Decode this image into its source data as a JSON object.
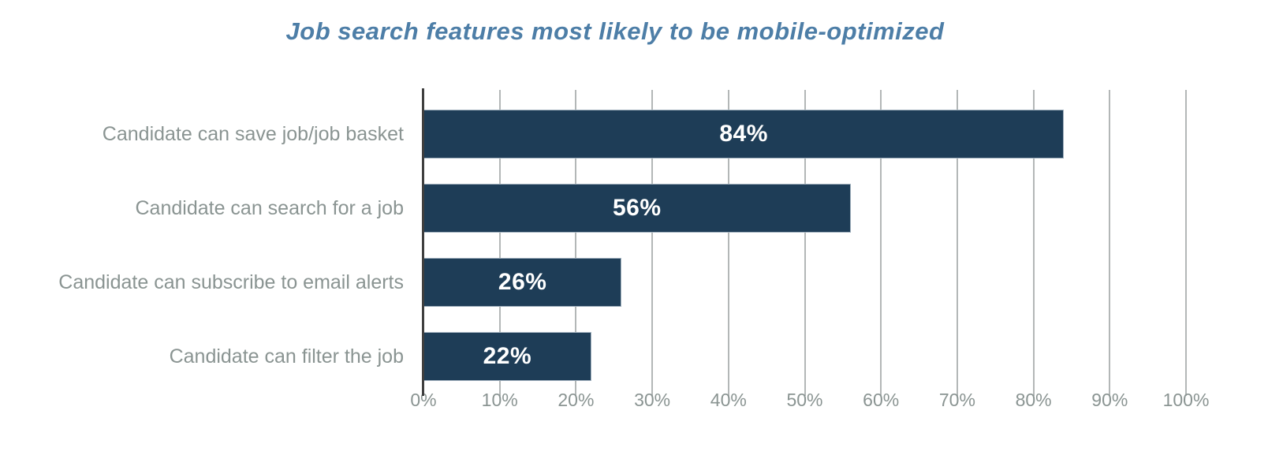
{
  "title": "Job search features most likely to be mobile-optimized",
  "chart_data": {
    "type": "bar",
    "orientation": "horizontal",
    "title": "Job search features most likely to be mobile-optimized",
    "categories": [
      "Candidate can save job/job basket",
      "Candidate can search for a job",
      "Candidate can subscribe to email alerts",
      "Candidate can filter the job"
    ],
    "values": [
      84,
      56,
      26,
      22
    ],
    "value_labels": [
      "84%",
      "56%",
      "26%",
      "22%"
    ],
    "xlabel": "",
    "ylabel": "",
    "xlim": [
      0,
      100
    ],
    "x_tick_labels": [
      "0%",
      "10%",
      "20%",
      "30%",
      "40%",
      "50%",
      "60%",
      "70%",
      "80%",
      "90%",
      "100%"
    ],
    "x_tick_values": [
      0,
      10,
      20,
      30,
      40,
      50,
      60,
      70,
      80,
      90,
      100
    ],
    "grid": true,
    "legend": false
  },
  "colors": {
    "bar": "#1e3d57",
    "title": "#4d7ea7",
    "category_label": "#8a9492",
    "gridline": "#b3b7b7",
    "axis_line": "#3f3f3f",
    "value_label": "#ffffff",
    "background": "#ffffff"
  }
}
